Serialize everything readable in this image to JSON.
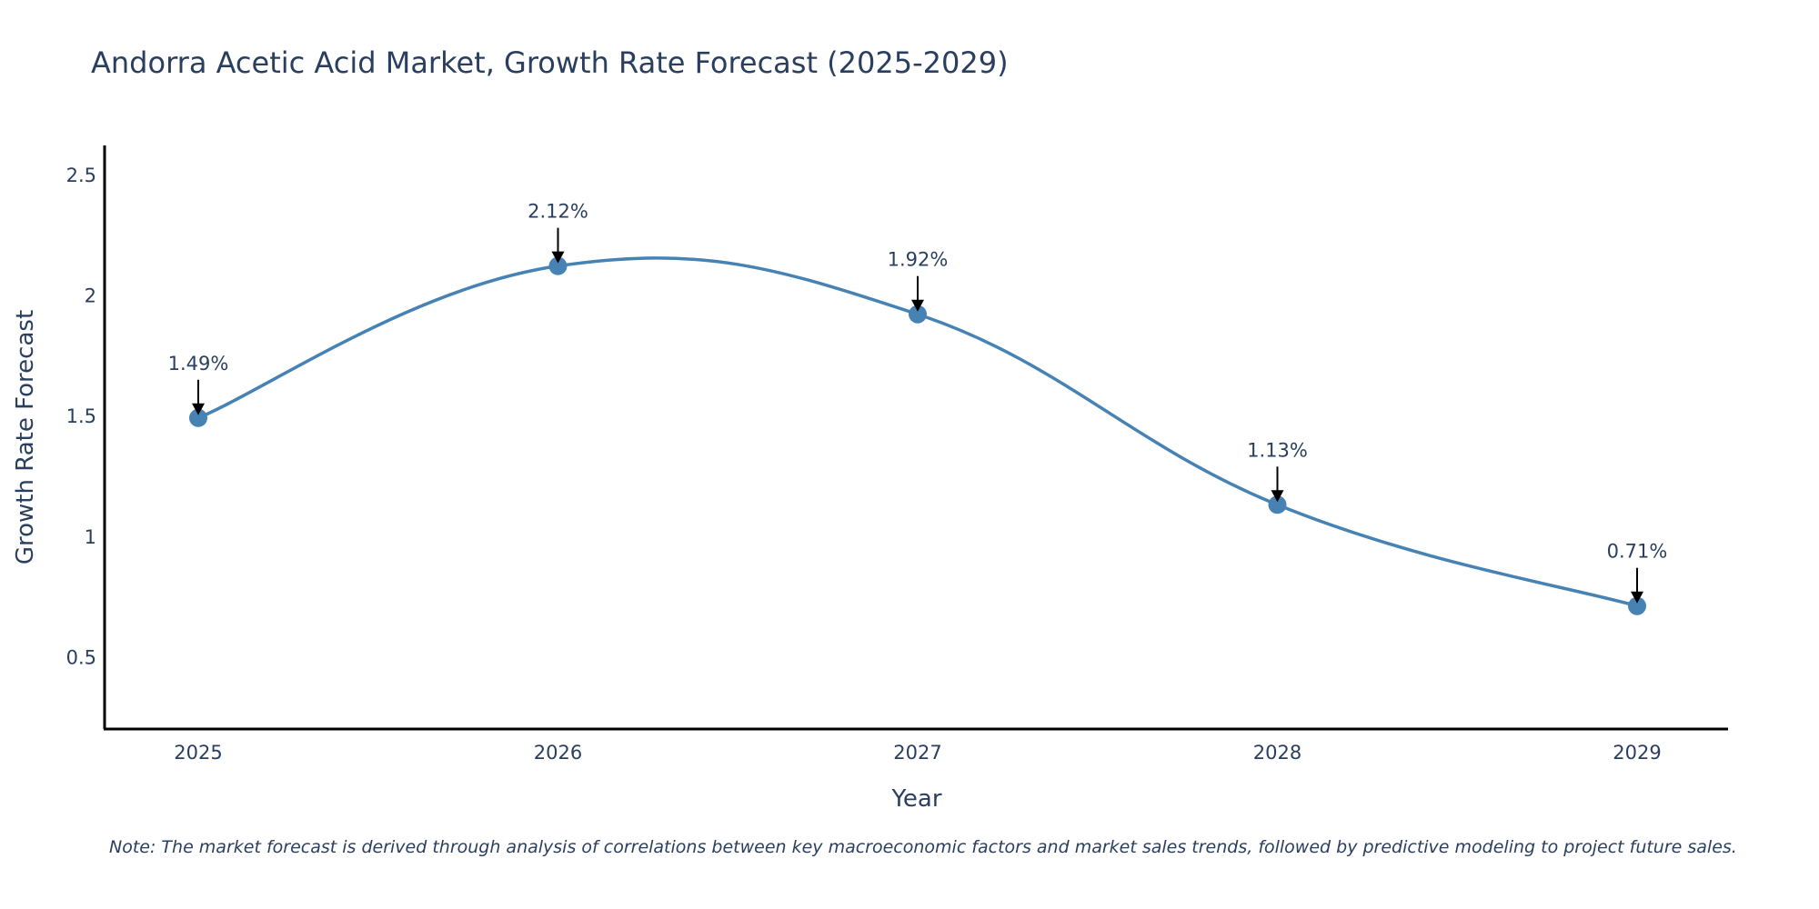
{
  "chart_data": {
    "type": "line",
    "title": "Andorra Acetic Acid Market, Growth Rate Forecast (2025-2029)",
    "xlabel": "Year",
    "ylabel": "Growth Rate Forecast",
    "categories": [
      "2025",
      "2026",
      "2027",
      "2028",
      "2029"
    ],
    "values": [
      1.49,
      2.12,
      1.92,
      1.13,
      0.71
    ],
    "data_labels": [
      "1.49%",
      "2.12%",
      "1.92%",
      "1.13%",
      "0.71%"
    ],
    "ylim": [
      0.2,
      2.62
    ],
    "yticks": [
      0.5,
      1,
      1.5,
      2,
      2.5
    ],
    "ytick_labels": [
      "0.5",
      "1",
      "1.5",
      "2",
      "2.5"
    ],
    "grid": false,
    "line_shape": "spline",
    "series_color": "#4682B4",
    "note": "Note: The market forecast is derived through analysis of correlations between key macroeconomic factors and market sales trends, followed by predictive modeling to project future sales."
  }
}
